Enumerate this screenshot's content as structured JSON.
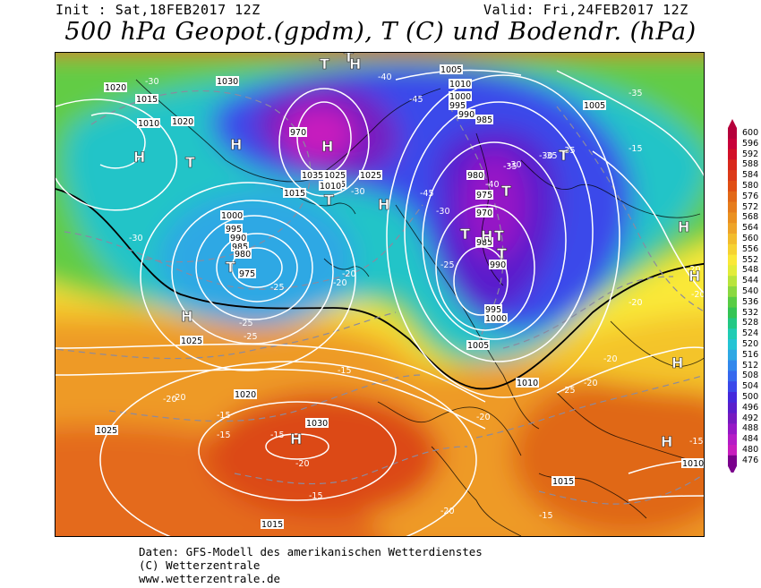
{
  "header": {
    "init_text": "Init : Sat,18FEB2017 12Z",
    "valid_text": "Valid: Fri,24FEB2017 12Z",
    "title": "500 hPa Geopot.(gpdm), T (C) und Bodendr. (hPa)"
  },
  "legend": {
    "values": [
      "600",
      "596",
      "592",
      "588",
      "584",
      "580",
      "576",
      "572",
      "568",
      "564",
      "560",
      "556",
      "552",
      "548",
      "544",
      "540",
      "536",
      "532",
      "528",
      "524",
      "520",
      "516",
      "512",
      "508",
      "504",
      "500",
      "496",
      "492",
      "488",
      "484",
      "480",
      "476"
    ],
    "colors": [
      "#b5003b",
      "#c8003a",
      "#d21028",
      "#d8281c",
      "#dc3a18",
      "#e04e14",
      "#e26818",
      "#e67c1c",
      "#ea9020",
      "#eea428",
      "#f2bc2c",
      "#f6d232",
      "#fae838",
      "#e2ec3a",
      "#b8e43c",
      "#8ad840",
      "#58cc44",
      "#34c454",
      "#22c884",
      "#20ccb4",
      "#24c4d4",
      "#2ea8e4",
      "#3288ec",
      "#3668ee",
      "#3a48ea",
      "#4428dc",
      "#5a1ecc",
      "#761ac0",
      "#9618c6",
      "#b41cc6",
      "#c81ebe",
      "#7a008c"
    ]
  },
  "map": {
    "pressure_labels": [
      "1020",
      "1030",
      "1015",
      "1010",
      "1025",
      "1005",
      "1000",
      "995",
      "990",
      "985",
      "980",
      "975",
      "970",
      "1035",
      "1025",
      "1010",
      "1015",
      "1005",
      "1010",
      "1000",
      "995",
      "990",
      "985",
      "980",
      "975",
      "970",
      "985",
      "990",
      "995",
      "1000",
      "1005",
      "1010",
      "1015",
      "1020",
      "1025",
      "1030",
      "1020",
      "1005",
      "1010",
      "1025",
      "1015"
    ],
    "temp_labels": [
      "-30",
      "-30",
      "-25",
      "-40",
      "-45",
      "-35",
      "-25",
      "-30",
      "-20",
      "-20",
      "-25",
      "-20",
      "-15",
      "-15",
      "-20",
      "-15",
      "-15",
      "-20",
      "-15",
      "-20",
      "-35",
      "-30",
      "-30",
      "-35",
      "-35",
      "-40",
      "-45",
      "-30",
      "-25",
      "-20",
      "-20",
      "-20",
      "-25",
      "-20",
      "-20",
      "-15",
      "-15",
      "-20",
      "-15",
      "-30"
    ],
    "center_symbols": [
      "H",
      "T",
      "H",
      "T",
      "H",
      "H",
      "T",
      "H",
      "T",
      "T",
      "T",
      "T",
      "H",
      "H",
      "H",
      "H",
      "H",
      "H",
      "H",
      "T",
      "T",
      "T"
    ]
  },
  "footer": {
    "line1": "Daten: GFS-Modell des amerikanischen Wetterdienstes",
    "line2": "(C) Wetterzentrale",
    "line3": "www.wetterzentrale.de"
  }
}
